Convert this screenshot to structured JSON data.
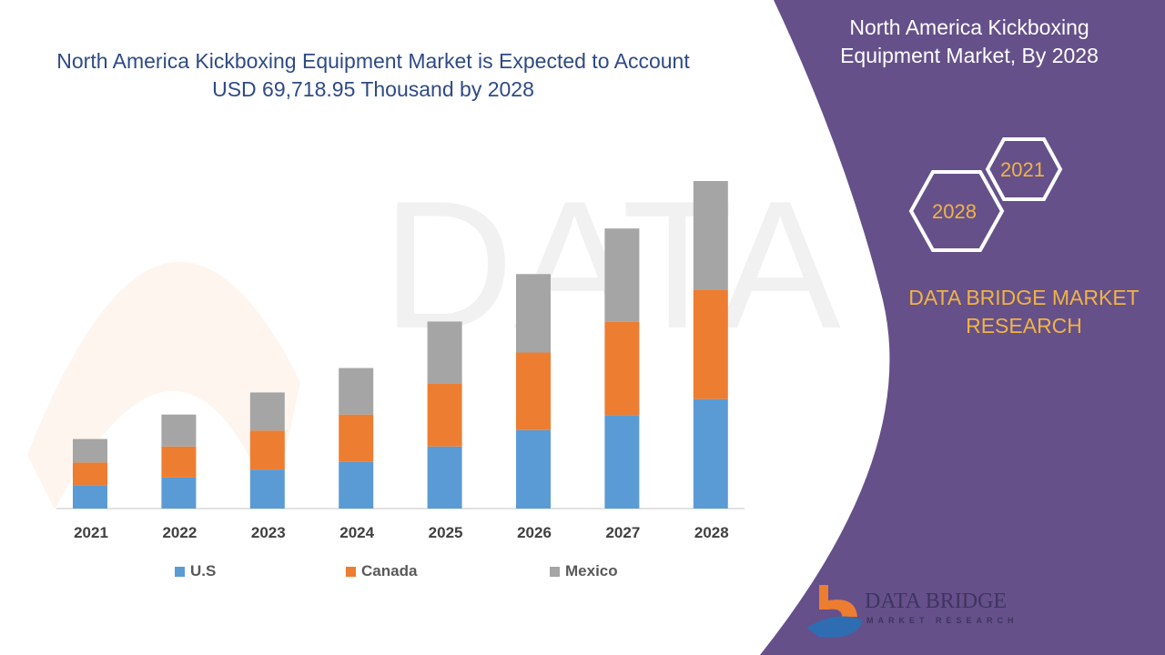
{
  "title": "North America Kickboxing Equipment Market is Expected to Account USD 69,718.95 Thousand by 2028",
  "side_panel": {
    "title": "North America Kickboxing Equipment Market, By 2028",
    "hex_labels": [
      "2021",
      "2028"
    ],
    "brand": "DATA BRIDGE MARKET RESEARCH",
    "logo_text": "DATA BRIDGE",
    "logo_subtext": "MARKET RESEARCH",
    "color": "#65508a"
  },
  "chart_data": {
    "type": "bar",
    "stacked": true,
    "categories": [
      "2021",
      "2022",
      "2023",
      "2024",
      "2025",
      "2026",
      "2027",
      "2028"
    ],
    "series": [
      {
        "name": "U.S",
        "color": "#5b9bd5",
        "values": [
          5000,
          6600,
          8300,
          9900,
          13200,
          16700,
          19900,
          23300
        ]
      },
      {
        "name": "Canada",
        "color": "#ed7d31",
        "values": [
          4800,
          6600,
          8300,
          10100,
          13400,
          16500,
          19800,
          23300
        ]
      },
      {
        "name": "Mexico",
        "color": "#a5a5a5",
        "values": [
          5000,
          6800,
          8100,
          9900,
          13200,
          16700,
          19900,
          23100
        ]
      }
    ],
    "ylim": [
      0,
      69700
    ],
    "y_axis_shown": false,
    "grid": false,
    "legend": "bottom"
  }
}
